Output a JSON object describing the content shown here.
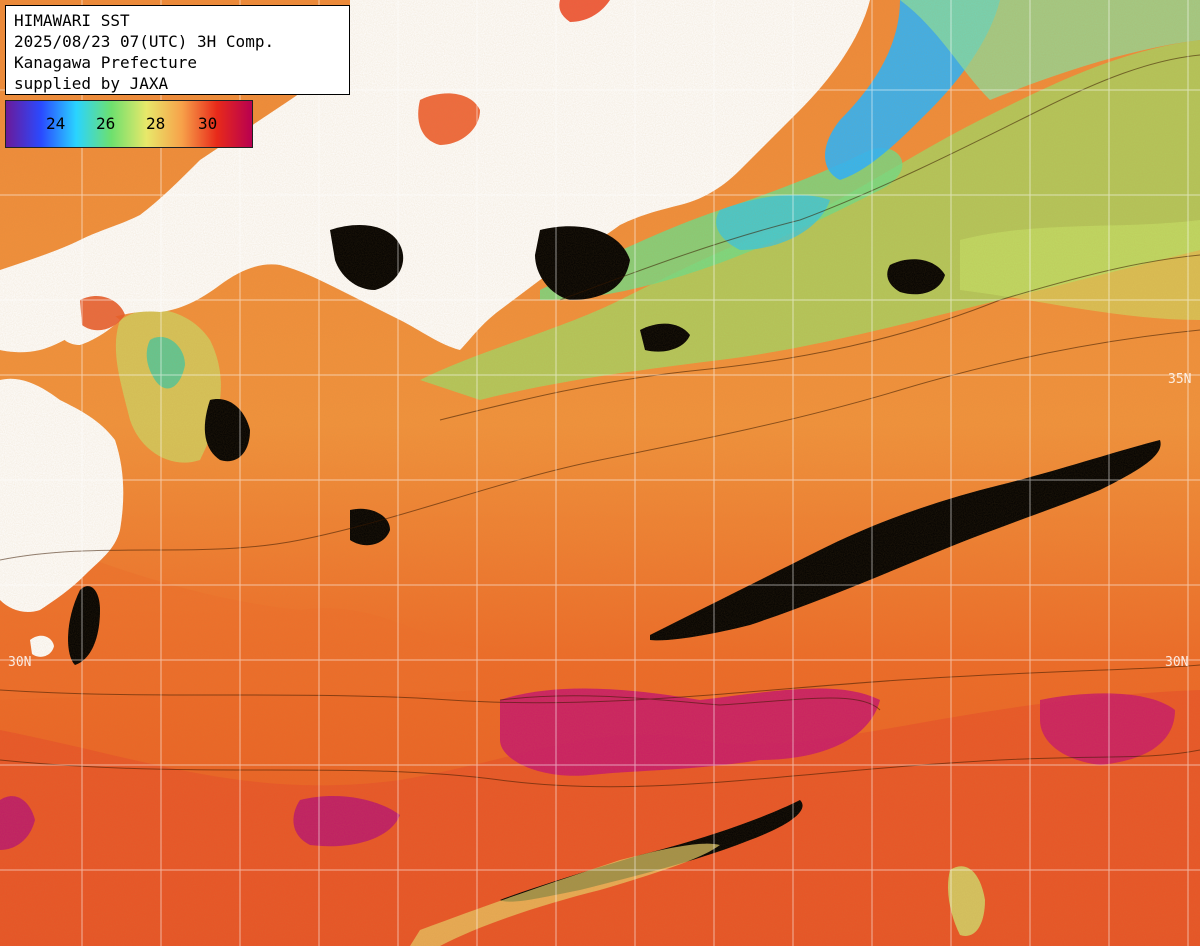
{
  "header": {
    "line1": "HIMAWARI SST",
    "line2": "2025/08/23 07(UTC) 3H Comp.",
    "line3": "Kanagawa Prefecture",
    "line4": "supplied by JAXA"
  },
  "legend": {
    "ticks": [
      "24",
      "26",
      "28",
      "30"
    ],
    "colors": [
      "#6a1a9a",
      "#2a4aff",
      "#2ad4ff",
      "#6ee06e",
      "#e8e86a",
      "#f7a24a",
      "#e82a1a",
      "#b80050"
    ]
  },
  "grid_labels": {
    "lat_35_right": "35N",
    "lat_30_left": "30N",
    "lat_30_right": "30N"
  },
  "colors": {
    "land": "#ffffff",
    "cloud": "#000000",
    "warm_sea": "#f07a2a",
    "hot_sea": "#c8186a",
    "cool_sea": "#7ae07a",
    "cold_sea": "#2ab4ff",
    "grid": "#ffffff"
  }
}
